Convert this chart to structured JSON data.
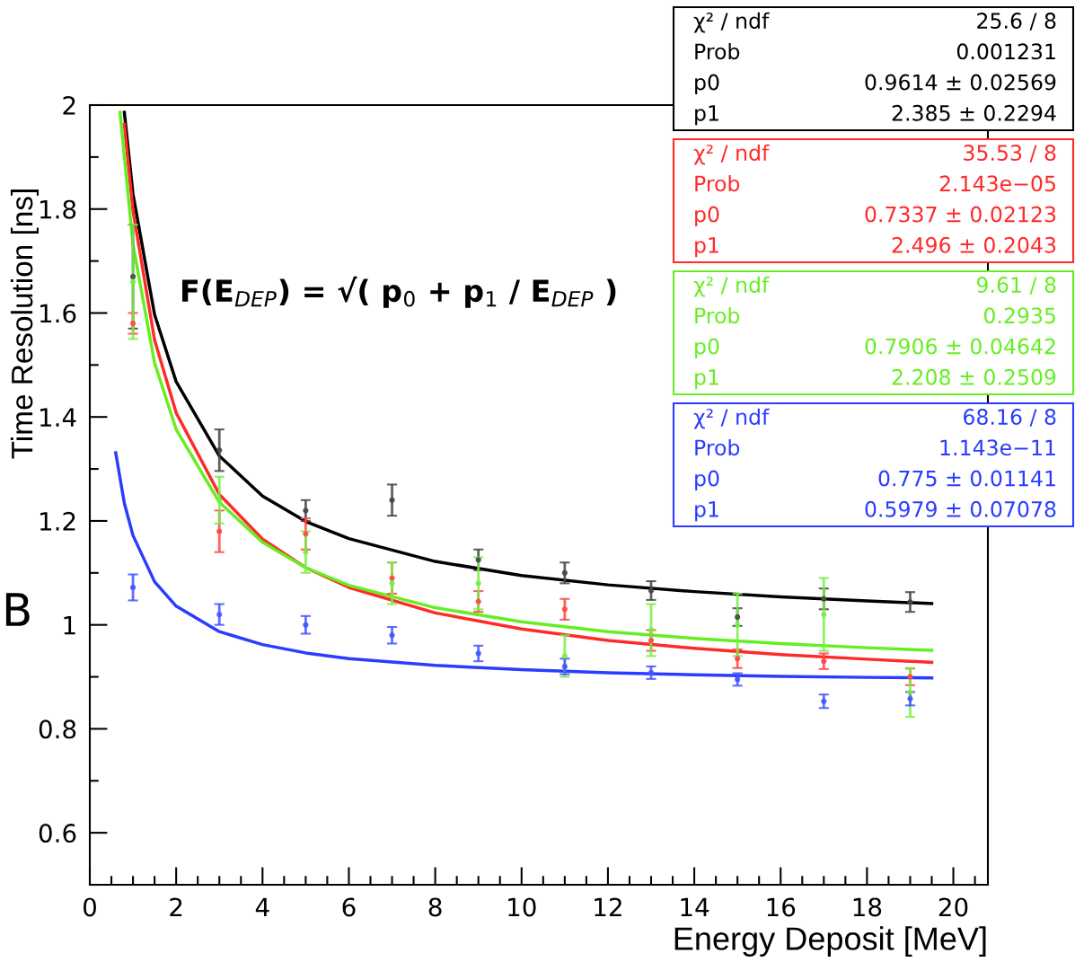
{
  "chart_data": {
    "type": "scatter",
    "xlabel": "Energy Deposit [MeV]",
    "ylabel": "Time Resolution [ns]",
    "xlim": [
      0,
      20.8
    ],
    "ylim": [
      0.5,
      2
    ],
    "xticks": [
      0,
      2,
      4,
      6,
      8,
      10,
      12,
      14,
      16,
      18,
      20
    ],
    "yticks": [
      0.6,
      0.8,
      {
        "value": 1,
        "label": "1"
      },
      1.2,
      1.4,
      1.6,
      1.8,
      {
        "value": 2,
        "label": "2"
      }
    ],
    "grid": false,
    "legend": false,
    "marker": "circle",
    "series": [
      {
        "type": "line",
        "marker": "none",
        "color": "#000000",
        "x": [
          0.8,
          1,
          1.5,
          2,
          3,
          4,
          5,
          6,
          8,
          10,
          12,
          14,
          16,
          18,
          19.5
        ],
        "values": [
          1.986,
          1.829,
          1.597,
          1.468,
          1.325,
          1.248,
          1.199,
          1.166,
          1.122,
          1.095,
          1.077,
          1.064,
          1.054,
          1.046,
          1.041
        ]
      },
      {
        "type": "line",
        "marker": "none",
        "color": "#ff2a2a",
        "x": [
          0.8,
          1,
          1.5,
          2,
          3,
          4,
          5,
          6,
          8,
          10,
          12,
          14,
          16,
          18,
          19.5
        ],
        "values": [
          1.963,
          1.797,
          1.548,
          1.408,
          1.251,
          1.165,
          1.11,
          1.072,
          1.023,
          0.992,
          0.97,
          0.955,
          0.943,
          0.934,
          0.928
        ]
      },
      {
        "type": "line",
        "marker": "none",
        "color": "#66ee22",
        "x": [
          0.7,
          1,
          1.5,
          2,
          3,
          4,
          5,
          6,
          8,
          10,
          12,
          14,
          16,
          18,
          19.5
        ],
        "values": [
          1.986,
          1.732,
          1.504,
          1.376,
          1.236,
          1.159,
          1.11,
          1.076,
          1.033,
          1.006,
          0.987,
          0.974,
          0.964,
          0.956,
          0.951
        ]
      },
      {
        "type": "line",
        "marker": "none",
        "color": "#2a3cff",
        "x": [
          0.6,
          0.8,
          1,
          1.5,
          2,
          3,
          4,
          5,
          6,
          8,
          10,
          12,
          14,
          16,
          18,
          19.5
        ],
        "values": [
          1.331,
          1.234,
          1.172,
          1.083,
          1.036,
          0.987,
          0.962,
          0.946,
          0.935,
          0.922,
          0.914,
          0.908,
          0.904,
          0.901,
          0.899,
          0.898
        ]
      },
      {
        "color": "#444444",
        "x": [
          1,
          3,
          5,
          7,
          9,
          11,
          13,
          15,
          17,
          19
        ],
        "values": [
          1.67,
          1.336,
          1.22,
          1.24,
          1.125,
          1.1,
          1.066,
          1.015,
          1.05,
          1.044
        ],
        "errors": [
          0.1,
          0.04,
          0.02,
          0.03,
          0.02,
          0.02,
          0.018,
          0.017,
          0.02,
          0.019
        ]
      },
      {
        "color": "#ff4444",
        "x": [
          1,
          3,
          5,
          7,
          9,
          11,
          13,
          15,
          17,
          19
        ],
        "values": [
          1.58,
          1.18,
          1.175,
          1.09,
          1.045,
          1.03,
          0.97,
          0.935,
          0.93,
          0.9
        ],
        "errors": [
          0.02,
          0.04,
          0.03,
          0.03,
          0.02,
          0.02,
          0.02,
          0.018,
          0.015,
          0.016
        ]
      },
      {
        "color": "#77ee44",
        "x": [
          1,
          3,
          5,
          7,
          9,
          11,
          13,
          15,
          17,
          19
        ],
        "values": [
          1.66,
          1.24,
          1.14,
          1.08,
          1.08,
          0.94,
          0.99,
          1.0,
          1.02,
          0.87
        ],
        "errors": [
          0.11,
          0.045,
          0.04,
          0.04,
          0.05,
          0.04,
          0.05,
          0.06,
          0.07,
          0.047
        ]
      },
      {
        "color": "#4455ff",
        "x": [
          1,
          3,
          5,
          7,
          9,
          11,
          13,
          15,
          17,
          19
        ],
        "values": [
          1.072,
          1.02,
          1.0,
          0.98,
          0.945,
          0.92,
          0.908,
          0.895,
          0.853,
          0.858
        ],
        "errors": [
          0.025,
          0.02,
          0.017,
          0.016,
          0.015,
          0.015,
          0.012,
          0.012,
          0.013,
          0.013
        ]
      }
    ],
    "annotations": [
      "χ² / ndf\t25.6 / 8\nProb\t0.001231\np0\t0.9614 ± 0.02569\np1\t2.385 ± 0.2294",
      "χ² / ndf\t35.53 / 8\nProb\t2.143e−05\np0\t0.7337 ± 0.02123\np1\t2.496 ± 0.2043",
      "χ² / ndf\t9.61 / 8\nProb\t0.2935\np0\t0.7906 ± 0.04642\np1\t2.208 ± 0.2509",
      "χ² / ndf\t68.16 / 8\nProb\t1.143e−11\np0\t0.775 ± 0.01141\np1\t0.5979 ± 0.07078",
      "F(E$_{DEP}$) = √( p$_{0}$ + p$_{1}$ / E$_{DEP}$ )",
      "B"
    ]
  }
}
